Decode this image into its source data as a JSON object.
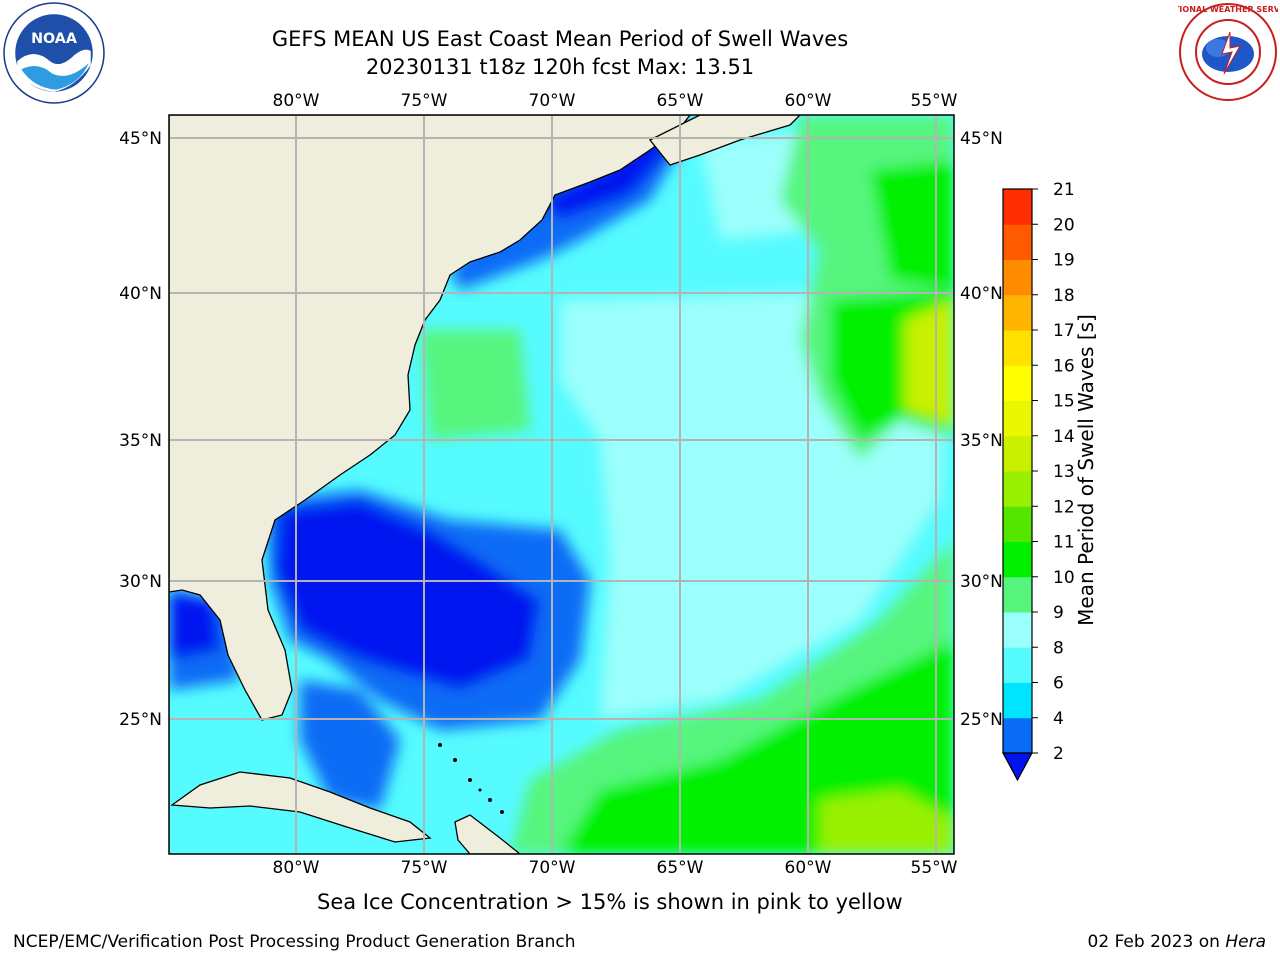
{
  "title": {
    "line1": "GEFS MEAN US East Coast Mean Period of Swell Waves",
    "line2": "20230131 t18z 120h fcst   Max: 13.51"
  },
  "logos": {
    "left": {
      "icon": "noaa-logo",
      "text": "NOAA"
    },
    "right": {
      "icon": "nws-logo",
      "text": "NATIONAL WEATHER SERVICE"
    }
  },
  "map": {
    "lon_ticks": [
      "80°W",
      "75°W",
      "70°W",
      "65°W",
      "60°W",
      "55°W"
    ],
    "lat_ticks": [
      "45°N",
      "40°N",
      "35°N",
      "30°N",
      "25°N"
    ],
    "lon_range": [
      -85,
      -54.5
    ],
    "lat_range": [
      20.5,
      46
    ]
  },
  "colorbar": {
    "label": "Mean Period of Swell Waves [s]",
    "ticks": [
      "2",
      "4",
      "6",
      "8",
      "9",
      "10",
      "11",
      "12",
      "13",
      "14",
      "15",
      "16",
      "17",
      "18",
      "19",
      "20",
      "21"
    ],
    "colors": [
      "#0a6cf5",
      "#00e5ff",
      "#55fbff",
      "#9bfffb",
      "#57f57e",
      "#00f000",
      "#55e600",
      "#99f000",
      "#c8f000",
      "#eaf700",
      "#ffff00",
      "#ffe100",
      "#ffb400",
      "#ff8c00",
      "#ff5a00",
      "#ff2d00",
      "#ff0000"
    ],
    "extend_color": "#0014f0"
  },
  "note": "Sea Ice Concentration > 15% is shown in pink to yellow",
  "footer": {
    "left": "NCEP/EMC/Verification Post Processing Product Generation Branch",
    "right_date": "02 Feb 2023 on ",
    "right_host": "Hera"
  }
}
